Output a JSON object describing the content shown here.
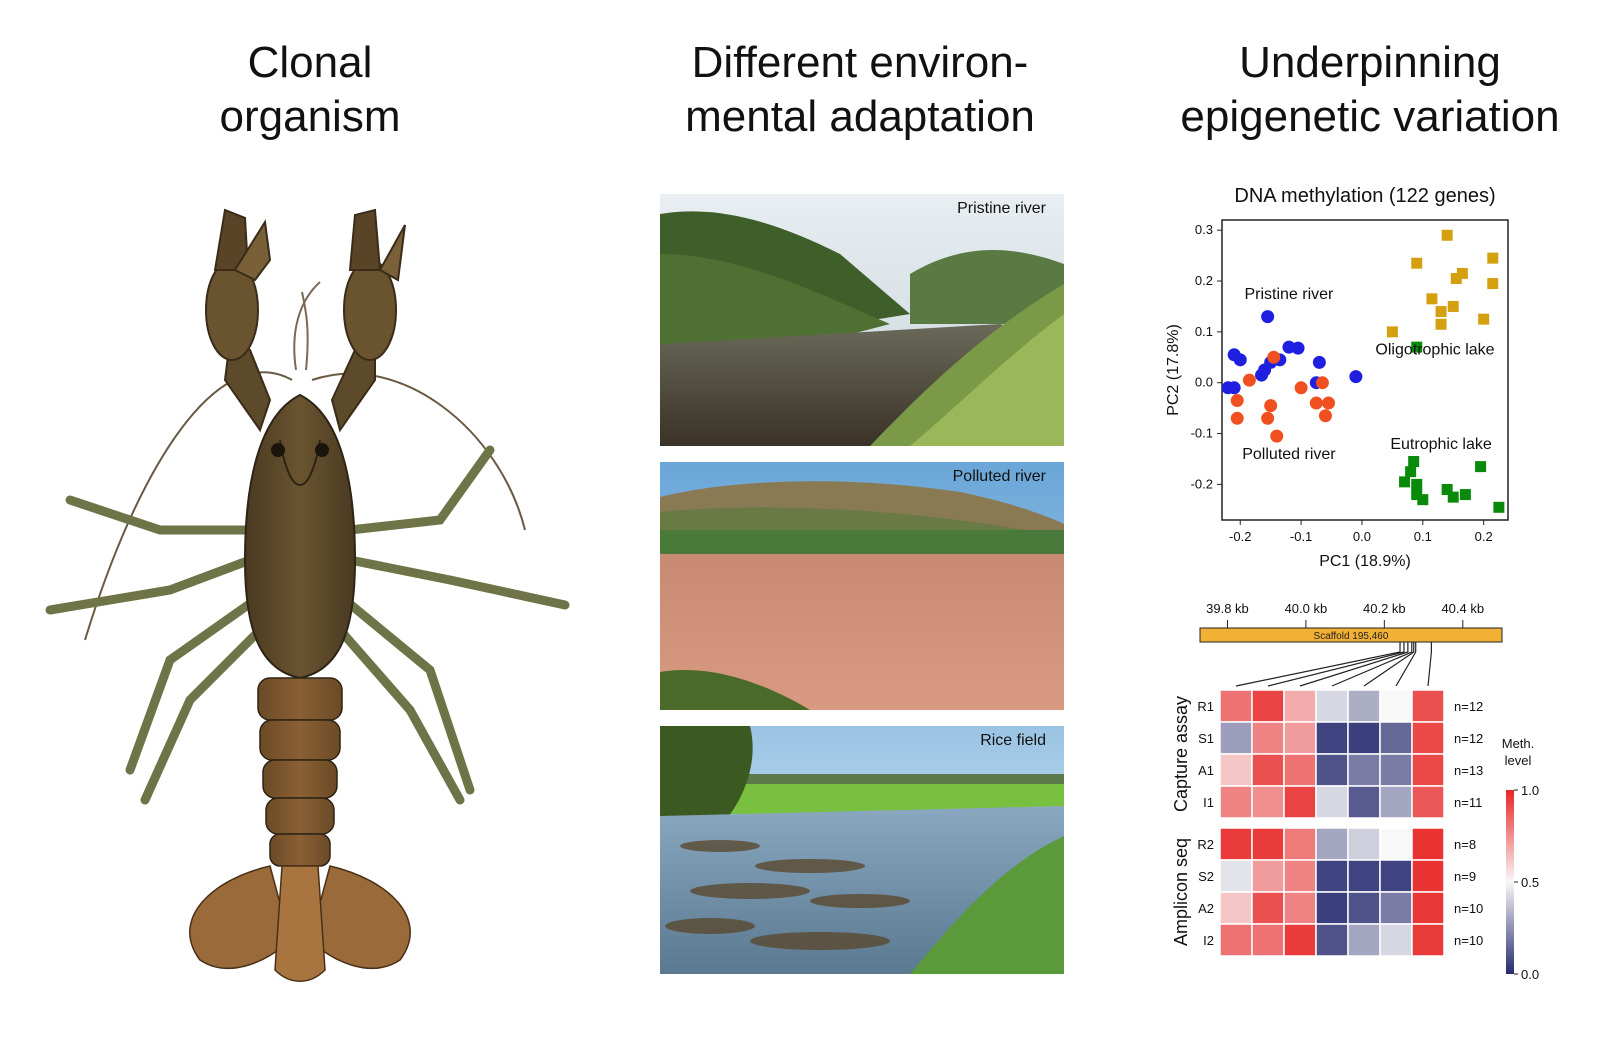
{
  "titles": {
    "col1": "Clonal\norganism",
    "col2": "Different environ-\nmental adaptation",
    "col3": "Underpinning\nepigenetic variation"
  },
  "photos": [
    {
      "label": "Pristine river"
    },
    {
      "label": "Polluted river"
    },
    {
      "label": "Rice field"
    }
  ],
  "chart_data": [
    {
      "type": "scatter",
      "title": "DNA methylation (122 genes)",
      "xlabel": "PC1 (18.9%)",
      "ylabel": "PC2 (17.8%)",
      "xlim": [
        -0.23,
        0.24
      ],
      "ylim": [
        -0.27,
        0.32
      ],
      "xticks": [
        "-0.2",
        "-0.1",
        "0.0",
        "0.1",
        "0.2"
      ],
      "xtick_values": [
        -0.2,
        -0.1,
        0.0,
        0.1,
        0.2
      ],
      "yticks": [
        "0.3",
        "0.2",
        "0.1",
        "0.0",
        "-0.1",
        "-0.2"
      ],
      "ytick_values": [
        0.3,
        0.2,
        0.1,
        0.0,
        -0.1,
        -0.2
      ],
      "group_labels": [
        {
          "text": "Pristine river",
          "x": -0.12,
          "y": 0.165
        },
        {
          "text": "Oligotrophic lake",
          "x": 0.12,
          "y": 0.055
        },
        {
          "text": "Eutrophic lake",
          "x": 0.13,
          "y": -0.13
        },
        {
          "text": "Polluted river",
          "x": -0.12,
          "y": -0.15
        }
      ],
      "series": [
        {
          "group": "Pristine river",
          "color": "#1f1fe0",
          "marker": "circle",
          "points": [
            [
              -0.155,
              0.13
            ],
            [
              -0.21,
              0.055
            ],
            [
              -0.2,
              0.045
            ],
            [
              -0.21,
              -0.01
            ],
            [
              -0.22,
              -0.01
            ],
            [
              -0.16,
              0.025
            ],
            [
              -0.135,
              0.045
            ],
            [
              -0.12,
              0.07
            ],
            [
              -0.105,
              0.068
            ],
            [
              -0.15,
              0.04
            ],
            [
              -0.07,
              0.04
            ],
            [
              -0.075,
              0.0
            ],
            [
              -0.01,
              0.012
            ],
            [
              -0.165,
              0.015
            ]
          ]
        },
        {
          "group": "Polluted river",
          "color": "#f05020",
          "marker": "circle",
          "points": [
            [
              -0.145,
              0.05
            ],
            [
              -0.185,
              0.005
            ],
            [
              -0.205,
              -0.035
            ],
            [
              -0.205,
              -0.07
            ],
            [
              -0.15,
              -0.045
            ],
            [
              -0.155,
              -0.07
            ],
            [
              -0.14,
              -0.105
            ],
            [
              -0.1,
              -0.01
            ],
            [
              -0.065,
              0.0
            ],
            [
              -0.075,
              -0.04
            ],
            [
              -0.055,
              -0.04
            ],
            [
              -0.06,
              -0.065
            ]
          ]
        },
        {
          "group": "Oligotrophic lake",
          "color": "#d4a010",
          "marker": "square",
          "points": [
            [
              0.14,
              0.29
            ],
            [
              0.215,
              0.245
            ],
            [
              0.09,
              0.235
            ],
            [
              0.165,
              0.215
            ],
            [
              0.155,
              0.205
            ],
            [
              0.215,
              0.195
            ],
            [
              0.115,
              0.165
            ],
            [
              0.15,
              0.15
            ],
            [
              0.13,
              0.14
            ],
            [
              0.13,
              0.115
            ],
            [
              0.2,
              0.125
            ],
            [
              0.05,
              0.1
            ]
          ]
        },
        {
          "group": "Eutrophic lake",
          "color": "#0a8a0a",
          "marker": "square",
          "points": [
            [
              0.09,
              0.07
            ],
            [
              0.08,
              -0.175
            ],
            [
              0.07,
              -0.195
            ],
            [
              0.09,
              -0.2
            ],
            [
              0.09,
              -0.22
            ],
            [
              0.1,
              -0.23
            ],
            [
              0.14,
              -0.21
            ],
            [
              0.15,
              -0.225
            ],
            [
              0.17,
              -0.22
            ],
            [
              0.195,
              -0.165
            ],
            [
              0.225,
              -0.245
            ],
            [
              0.085,
              -0.155
            ]
          ]
        }
      ]
    },
    {
      "type": "heatmap",
      "scaffold_label": "Scaffold 195,460",
      "scale_ticks": [
        "39.8 kb",
        "40.0 kb",
        "40.2 kb",
        "40.4 kb"
      ],
      "scale_tick_values": [
        39.8,
        40.0,
        40.2,
        40.4
      ],
      "scale_range": [
        39.73,
        40.5
      ],
      "cpg_positions": [
        40.24,
        40.25,
        40.26,
        40.27,
        40.275,
        40.28,
        40.32
      ],
      "groups": [
        {
          "name": "Capture assay",
          "rows": [
            "R1",
            "S1",
            "A1",
            "I1"
          ],
          "counts": [
            "n=12",
            "n=12",
            "n=13",
            "n=11"
          ],
          "values": [
            [
              0.82,
              0.93,
              0.68,
              0.42,
              0.32,
              0.5,
              0.9
            ],
            [
              0.28,
              0.78,
              0.72,
              0.06,
              0.05,
              0.15,
              0.92
            ],
            [
              0.62,
              0.9,
              0.82,
              0.1,
              0.2,
              0.2,
              0.92
            ],
            [
              0.78,
              0.75,
              0.93,
              0.42,
              0.12,
              0.3,
              0.88
            ]
          ]
        },
        {
          "name": "Amplicon seq",
          "rows": [
            "R2",
            "S2",
            "A2",
            "I2"
          ],
          "counts": [
            "n=8",
            "n=9",
            "n=10",
            "n=10"
          ],
          "values": [
            [
              0.95,
              0.95,
              0.8,
              0.3,
              0.4,
              0.5,
              0.97
            ],
            [
              0.45,
              0.72,
              0.78,
              0.06,
              0.06,
              0.06,
              0.97
            ],
            [
              0.62,
              0.9,
              0.78,
              0.05,
              0.1,
              0.2,
              0.96
            ],
            [
              0.82,
              0.82,
              0.95,
              0.1,
              0.3,
              0.42,
              0.95
            ]
          ]
        }
      ],
      "legend_title": "Meth.\nlevel",
      "legend_ticks": [
        "1.0",
        "0.5",
        "0.0"
      ],
      "legend_tick_values": [
        1.0,
        0.5,
        0.0
      ]
    }
  ]
}
